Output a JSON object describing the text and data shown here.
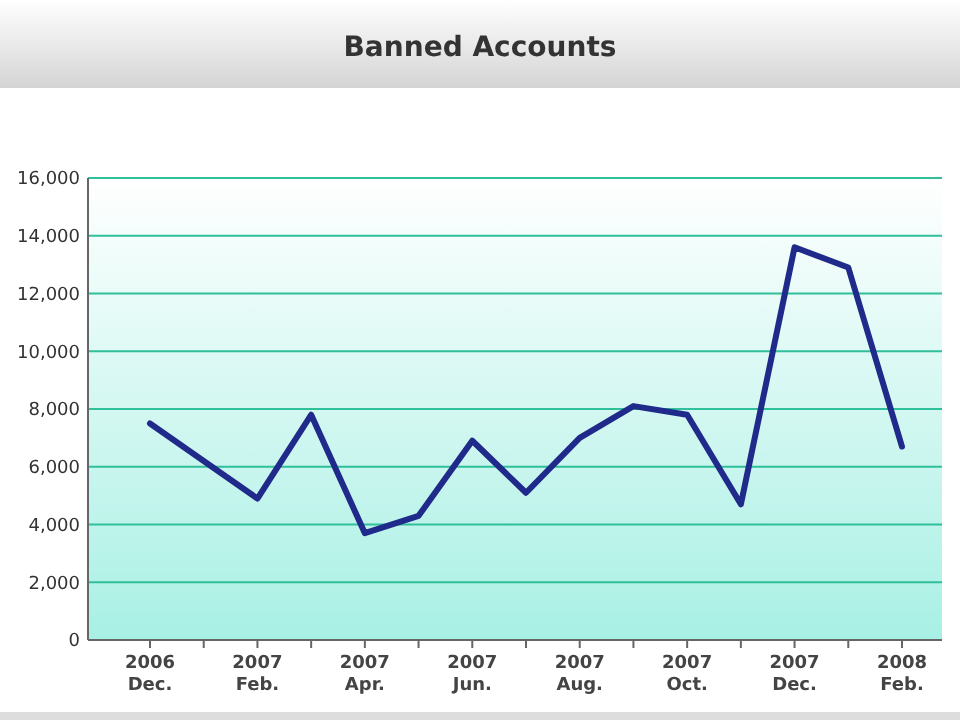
{
  "chart_data": {
    "type": "line",
    "title": "Banned Accounts",
    "categories": [
      "2006\nDec.",
      null,
      "2007\nFeb.",
      null,
      "2007\nApr.",
      null,
      "2007\nJun.",
      null,
      "2007\nAug.",
      null,
      "2007\nOct.",
      null,
      "2007\nDec.",
      null,
      "2008\nFeb."
    ],
    "series": [
      {
        "color": "#1f2a8a",
        "values": [
          7500,
          6200,
          4900,
          7800,
          3700,
          4300,
          6900,
          5100,
          7000,
          8100,
          7800,
          4700,
          13600,
          12900,
          6700
        ]
      }
    ],
    "ylim": [
      0,
      16000
    ],
    "yticks": [
      0,
      {
        "value": 2000,
        "label": "2,000"
      },
      {
        "value": 4000,
        "label": "4,000"
      },
      {
        "value": 6000,
        "label": "6,000"
      },
      {
        "value": 8000,
        "label": "8,000"
      },
      {
        "value": 10000,
        "label": "10,000"
      },
      {
        "value": 12000,
        "label": "12,000"
      },
      {
        "value": 14000,
        "label": "14,000"
      },
      {
        "value": 16000,
        "label": "16,000"
      }
    ],
    "grid": "y",
    "marker": "none",
    "line_style": "solid"
  }
}
